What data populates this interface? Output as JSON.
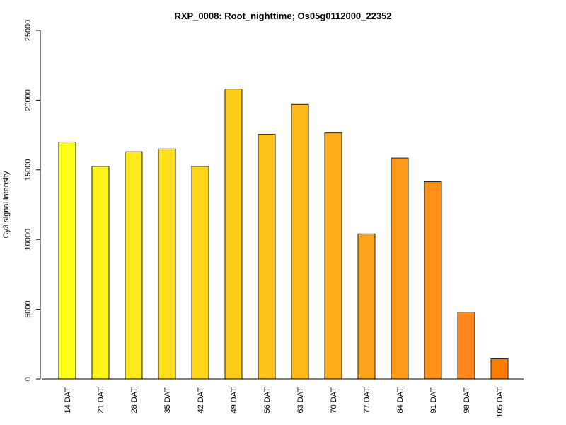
{
  "chart_data": {
    "type": "bar",
    "title": "RXP_0008: Root_nighttime; Os05g0112000_22352",
    "xlabel": "",
    "ylabel": "Cy3 signal intensity",
    "ylim": [
      0,
      25000
    ],
    "yticks": [
      0,
      5000,
      10000,
      15000,
      20000,
      25000
    ],
    "categories": [
      "14 DAT",
      "21 DAT",
      "28 DAT",
      "35 DAT",
      "42 DAT",
      "49 DAT",
      "56 DAT",
      "63 DAT",
      "70 DAT",
      "77 DAT",
      "84 DAT",
      "91 DAT",
      "98 DAT",
      "105 DAT"
    ],
    "values": [
      17000,
      15250,
      16300,
      16500,
      15250,
      20800,
      17550,
      19700,
      17650,
      10400,
      15850,
      14150,
      4800,
      1450
    ],
    "colors": [
      "#FFFF1A",
      "#FFF41A",
      "#FFEA1A",
      "#FFE01A",
      "#FFD61A",
      "#FFCC1A",
      "#FFC21A",
      "#FFB81A",
      "#FFAE1A",
      "#FFA41A",
      "#FF9A1A",
      "#FF901A",
      "#FF861A",
      "#FF7C00"
    ],
    "grid": false,
    "legend": "none"
  }
}
